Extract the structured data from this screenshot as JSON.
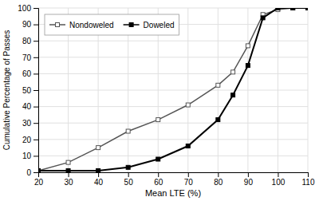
{
  "chart_data": {
    "type": "line",
    "x": [
      20,
      30,
      40,
      50,
      60,
      70,
      80,
      85,
      90,
      95,
      100,
      105,
      110
    ],
    "series": [
      {
        "name": "Nondoweled",
        "color": "#555555",
        "marker": "open-square",
        "values": [
          1,
          6,
          15,
          25,
          32,
          41,
          53,
          61,
          77,
          96,
          99,
          100,
          100
        ]
      },
      {
        "name": "Doweled",
        "color": "#000000",
        "marker": "square",
        "values": [
          1,
          1,
          1,
          3,
          8,
          16,
          32,
          47,
          65,
          94,
          100,
          100,
          100
        ]
      }
    ],
    "xlabel": "Mean LTE (%)",
    "ylabel": "Cumulative Percentage of Passes",
    "xlim": [
      20,
      110
    ],
    "ylim": [
      0,
      100
    ],
    "xticks": [
      20,
      30,
      40,
      50,
      60,
      70,
      80,
      90,
      100,
      110
    ],
    "yticks": [
      0,
      10,
      20,
      30,
      40,
      50,
      60,
      70,
      80,
      90,
      100
    ],
    "grid": true,
    "legend": "upper left"
  }
}
